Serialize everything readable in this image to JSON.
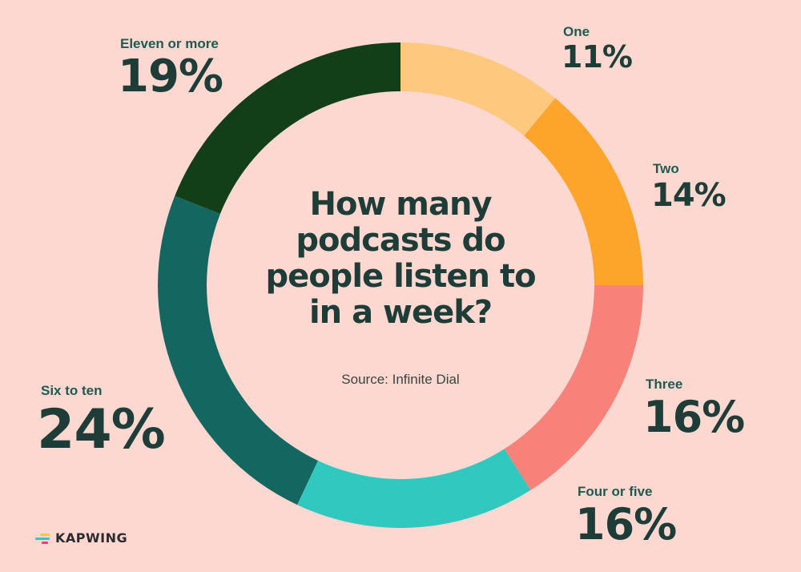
{
  "chart_data": {
    "type": "pie",
    "variant": "donut",
    "title": "How many podcasts do people listen to in a week?",
    "subtitle": "Source: Infinite Dial",
    "categories": [
      "One",
      "Two",
      "Three",
      "Four or five",
      "Six to ten",
      "Eleven or more"
    ],
    "values": [
      11,
      14,
      16,
      16,
      24,
      19
    ],
    "unit": "%",
    "colors": [
      "#fec97e",
      "#fda52a",
      "#f8827a",
      "#31c9bf",
      "#146661",
      "#123f17"
    ],
    "start_angle_deg": 0,
    "direction": "clockwise",
    "legend": "labels placed around ring"
  },
  "title_lines": [
    "How many",
    "podcasts do",
    "people listen to",
    "in a week?"
  ],
  "source": "Source: Infinite Dial",
  "labels": {
    "one": {
      "name": "One",
      "value": "11%"
    },
    "two": {
      "name": "Two",
      "value": "14%"
    },
    "three": {
      "name": "Three",
      "value": "16%"
    },
    "four_five": {
      "name": "Four or five",
      "value": "16%"
    },
    "six_ten": {
      "name": "Six to ten",
      "value": "24%"
    },
    "eleven": {
      "name": "Eleven or more",
      "value": "19%"
    }
  },
  "brand": {
    "name": "KAPWING",
    "icon": "kapwing-logo-icon",
    "mark_colors": [
      "#fec83c",
      "#31c9bf",
      "#f0407a"
    ]
  },
  "background": "#fdd8d0"
}
